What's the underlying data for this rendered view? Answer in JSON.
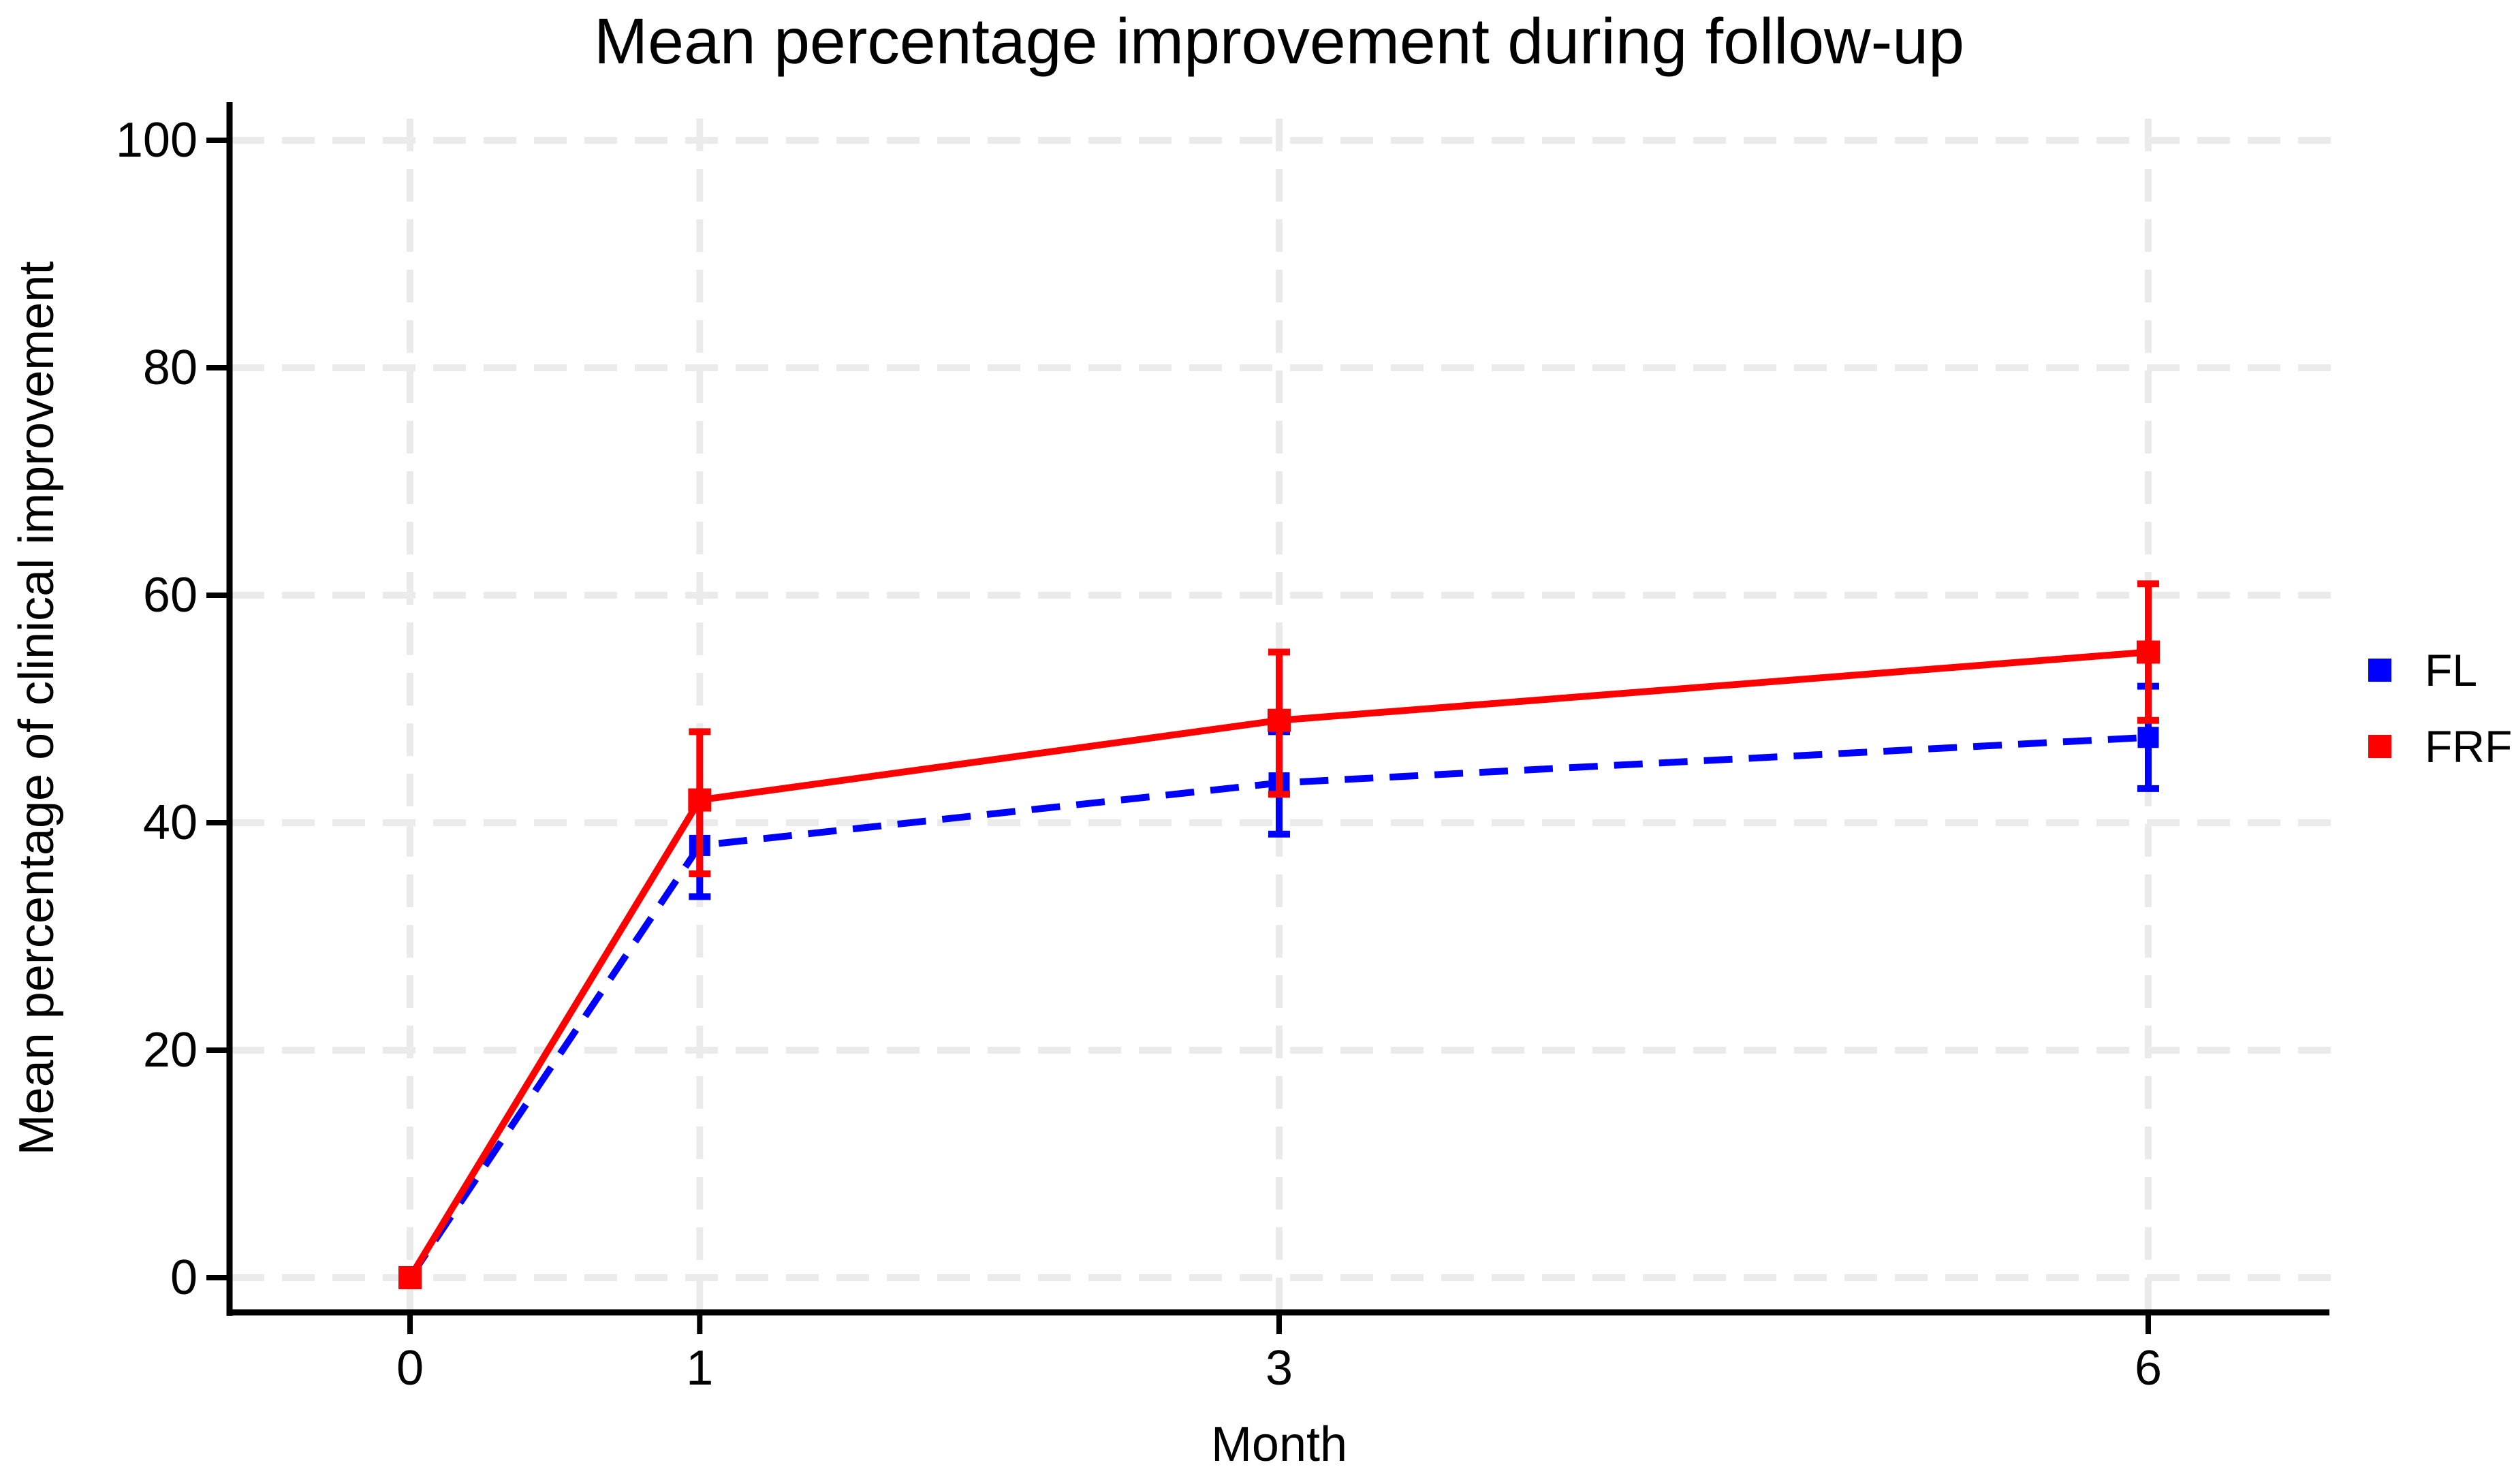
{
  "chart_data": {
    "type": "line",
    "title": "Mean percentage improvement during follow-up",
    "xlabel": "Month",
    "ylabel": "Mean percentage of clinical improvement",
    "x": [
      0,
      1,
      3,
      6
    ],
    "xticks": [
      "0",
      "1",
      "3",
      "6"
    ],
    "yticks": [
      "0",
      "20",
      "40",
      "60",
      "80",
      "100"
    ],
    "ytick_values": [
      0,
      20,
      40,
      60,
      80,
      100
    ],
    "ylim": [
      0,
      100
    ],
    "grid": "dashed light-gray horizontal and vertical at ticks",
    "legend_position": "right",
    "series": [
      {
        "name": "FL",
        "color": "#0000FF",
        "line_style": "dashed",
        "marker": "square",
        "values": [
          0,
          38,
          43.5,
          47.5
        ],
        "ci_low": [
          null,
          33.5,
          39,
          43
        ],
        "ci_high": [
          null,
          42.5,
          48,
          52
        ]
      },
      {
        "name": "FRF",
        "color": "#FF0000",
        "line_style": "solid",
        "marker": "square",
        "values": [
          0,
          42,
          49,
          55
        ],
        "ci_low": [
          null,
          35.5,
          42.5,
          49
        ],
        "ci_high": [
          null,
          48,
          55,
          61
        ]
      }
    ],
    "colors": {
      "axis": "#000000",
      "gridline": "#EBEBEB",
      "background": "#FFFFFF"
    }
  }
}
